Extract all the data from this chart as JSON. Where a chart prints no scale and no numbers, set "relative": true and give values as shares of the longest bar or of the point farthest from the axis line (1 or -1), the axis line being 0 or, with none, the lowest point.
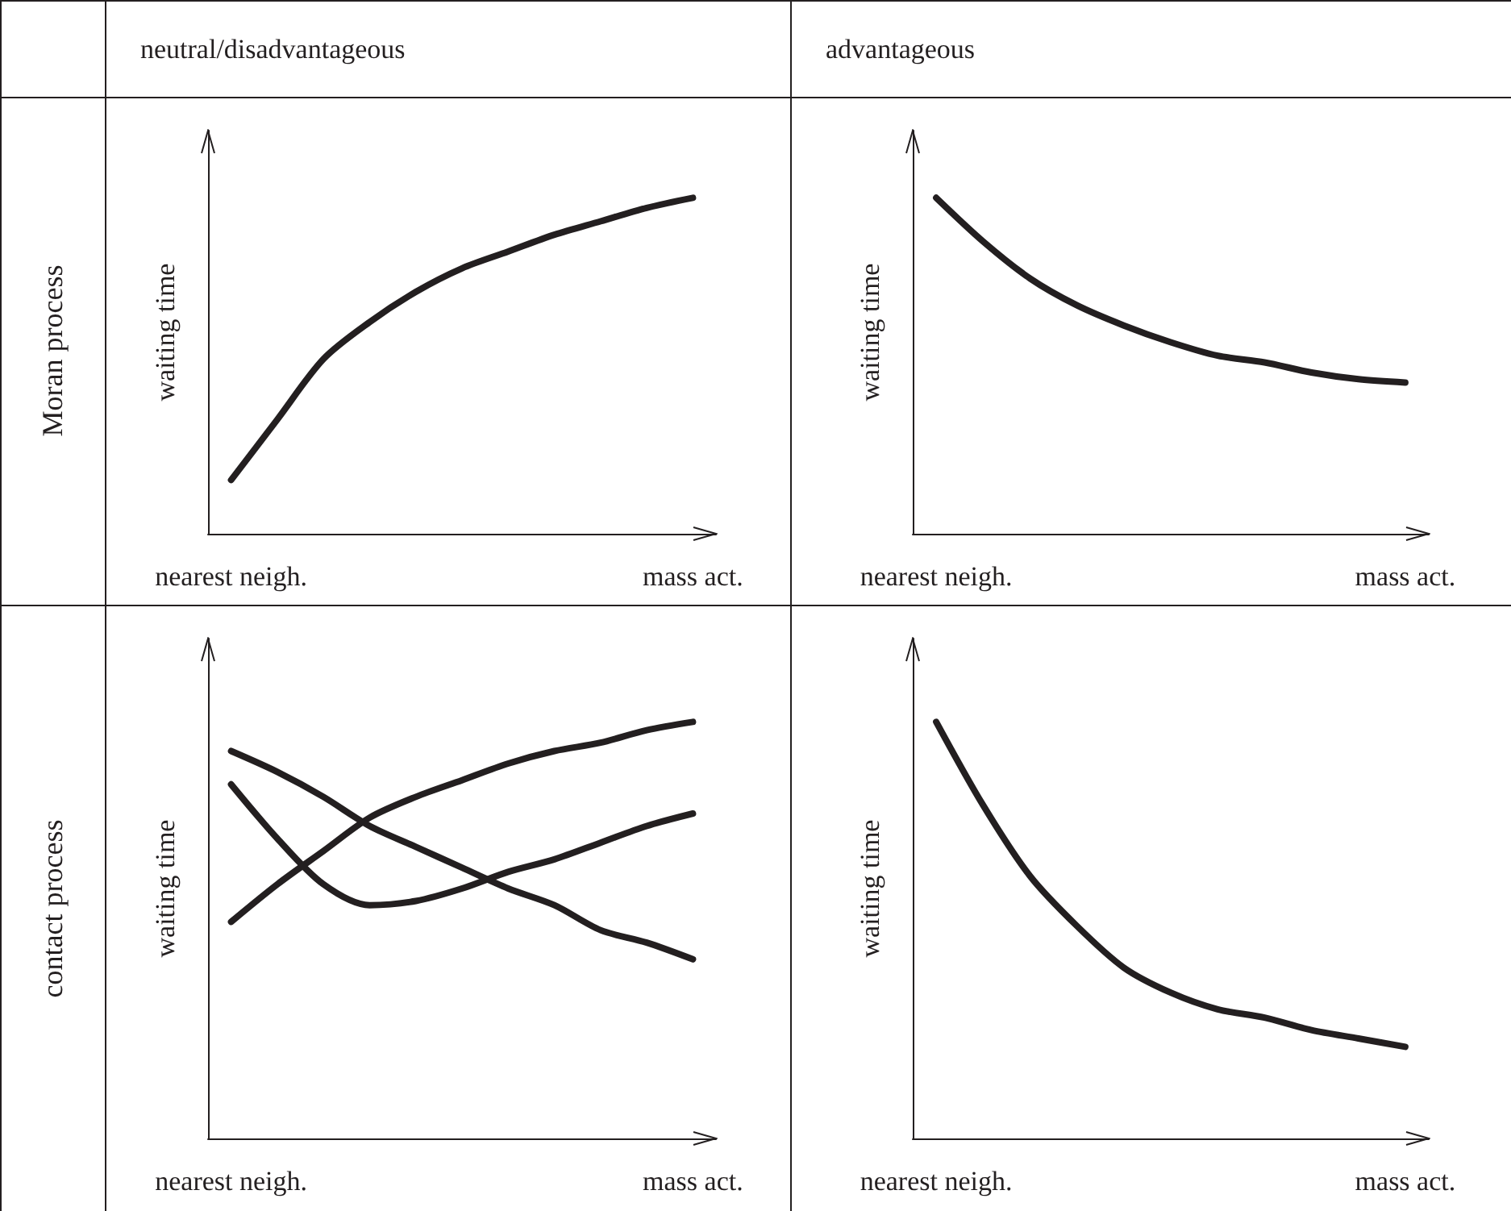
{
  "chart_data": [
    {
      "type": "line",
      "title": "neutral/disadvantageous",
      "annotations": [
        "Moran process"
      ],
      "ylabel": "waiting time",
      "categories": [
        "nearest neigh.",
        null,
        null,
        null,
        null,
        null,
        null,
        null,
        null,
        null,
        "mass act."
      ],
      "relative": true,
      "line_style": "solid",
      "series": [
        {
          "color": "#231f20",
          "values": [
            0.16,
            0.34,
            0.52,
            0.63,
            0.72,
            0.79,
            0.84,
            0.89,
            0.93,
            0.97,
            1
          ]
        }
      ]
    },
    {
      "type": "line",
      "title": "advantageous",
      "ylabel": "waiting time",
      "categories": [
        "nearest neigh.",
        null,
        null,
        null,
        null,
        null,
        null,
        null,
        null,
        null,
        "mass act."
      ],
      "relative": true,
      "line_style": "solid",
      "series": [
        {
          "color": "#231f20",
          "values": [
            1,
            0.87,
            0.76,
            0.68,
            0.62,
            0.57,
            0.53,
            0.51,
            0.48,
            0.46,
            0.45
          ]
        }
      ]
    },
    {
      "type": "line",
      "annotations": [
        "contact process"
      ],
      "ylabel": "waiting time",
      "categories": [
        "nearest neigh.",
        null,
        null,
        null,
        null,
        null,
        null,
        null,
        null,
        null,
        "mass act."
      ],
      "relative": true,
      "line_style": "solid",
      "series": [
        {
          "color": "#231f20",
          "values": [
            0.52,
            0.61,
            0.69,
            0.77,
            0.82,
            0.86,
            0.9,
            0.93,
            0.95,
            0.98,
            1
          ]
        },
        {
          "color": "#231f20",
          "values": [
            0.93,
            0.88,
            0.82,
            0.75,
            0.7,
            0.65,
            0.6,
            0.56,
            0.5,
            0.47,
            0.43
          ]
        },
        {
          "color": "#231f20",
          "values": [
            0.85,
            0.72,
            0.61,
            0.56,
            0.57,
            0.6,
            0.64,
            0.67,
            0.71,
            0.75,
            0.78
          ]
        }
      ]
    },
    {
      "type": "line",
      "ylabel": "waiting time",
      "categories": [
        "nearest neigh.",
        null,
        null,
        null,
        null,
        null,
        null,
        null,
        null,
        null,
        "mass act."
      ],
      "relative": true,
      "line_style": "solid",
      "series": [
        {
          "color": "#231f20",
          "values": [
            1,
            0.8,
            0.63,
            0.51,
            0.41,
            0.35,
            0.31,
            0.29,
            0.26,
            0.24,
            0.22
          ]
        }
      ]
    }
  ]
}
